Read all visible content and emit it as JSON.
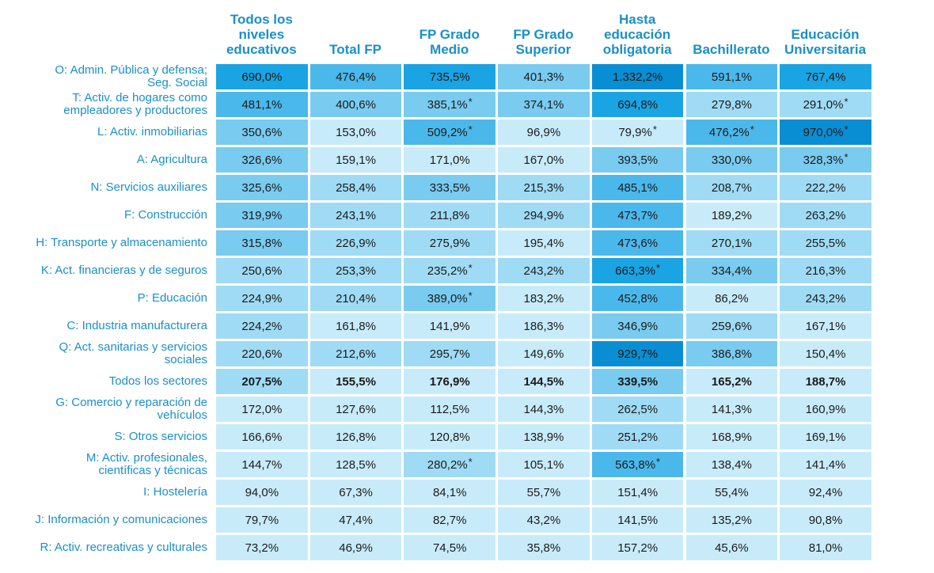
{
  "chart_data": {
    "type": "heatmap",
    "title": "",
    "note_marker": "*",
    "columns": [
      [
        "Todos los",
        "niveles",
        "educativos"
      ],
      [
        "Total FP"
      ],
      [
        "FP Grado",
        "Medio"
      ],
      [
        "FP Grado",
        "Superior"
      ],
      [
        "Hasta",
        "educación",
        "obligatoria"
      ],
      [
        "Bachillerato"
      ],
      [
        "Educación",
        "Universitaria"
      ]
    ],
    "rows": [
      {
        "label": [
          "O: Admin. Pública y defensa;",
          "Seg. Social"
        ],
        "bold": false,
        "values": [
          690.0,
          476.4,
          735.5,
          401.3,
          1332.2,
          591.1,
          767.4
        ],
        "texts": [
          "690,0%",
          "476,4%",
          "735,5%",
          "401,3%",
          "1.332,2%",
          "591,1%",
          "767,4%"
        ],
        "flags": [
          false,
          false,
          false,
          false,
          false,
          false,
          false
        ]
      },
      {
        "label": [
          "T: Activ. de hogares como",
          "empleadores y productores"
        ],
        "bold": false,
        "values": [
          481.1,
          400.6,
          385.1,
          374.1,
          694.8,
          279.8,
          291.0
        ],
        "texts": [
          "481,1%",
          "400,6%",
          "385,1%",
          "374,1%",
          "694,8%",
          "279,8%",
          "291,0%"
        ],
        "flags": [
          false,
          false,
          true,
          false,
          false,
          false,
          true
        ]
      },
      {
        "label": [
          "L: Activ. inmobiliarias"
        ],
        "bold": false,
        "values": [
          350.6,
          153.0,
          509.2,
          96.9,
          79.9,
          476.2,
          970.0
        ],
        "texts": [
          "350,6%",
          "153,0%",
          "509,2%",
          "96,9%",
          "79,9%",
          "476,2%",
          "970,0%"
        ],
        "flags": [
          false,
          false,
          true,
          false,
          true,
          true,
          true
        ]
      },
      {
        "label": [
          "A: Agricultura"
        ],
        "bold": false,
        "values": [
          326.6,
          159.1,
          171.0,
          167.0,
          393.5,
          330.0,
          328.3
        ],
        "texts": [
          "326,6%",
          "159,1%",
          "171,0%",
          "167,0%",
          "393,5%",
          "330,0%",
          "328,3%"
        ],
        "flags": [
          false,
          false,
          false,
          false,
          false,
          false,
          true
        ]
      },
      {
        "label": [
          "N: Servicios auxiliares"
        ],
        "bold": false,
        "values": [
          325.6,
          258.4,
          333.5,
          215.3,
          485.1,
          208.7,
          222.2
        ],
        "texts": [
          "325,6%",
          "258,4%",
          "333,5%",
          "215,3%",
          "485,1%",
          "208,7%",
          "222,2%"
        ],
        "flags": [
          false,
          false,
          false,
          false,
          false,
          false,
          false
        ]
      },
      {
        "label": [
          "F: Construcción"
        ],
        "bold": false,
        "values": [
          319.9,
          243.1,
          211.8,
          294.9,
          473.7,
          189.2,
          263.2
        ],
        "texts": [
          "319,9%",
          "243,1%",
          "211,8%",
          "294,9%",
          "473,7%",
          "189,2%",
          "263,2%"
        ],
        "flags": [
          false,
          false,
          false,
          false,
          false,
          false,
          false
        ]
      },
      {
        "label": [
          "H: Transporte y almacenamiento"
        ],
        "bold": false,
        "values": [
          315.8,
          226.9,
          275.9,
          195.4,
          473.6,
          270.1,
          255.5
        ],
        "texts": [
          "315,8%",
          "226,9%",
          "275,9%",
          "195,4%",
          "473,6%",
          "270,1%",
          "255,5%"
        ],
        "flags": [
          false,
          false,
          false,
          false,
          false,
          false,
          false
        ]
      },
      {
        "label": [
          "K: Act. financieras y de seguros"
        ],
        "bold": false,
        "values": [
          250.6,
          253.3,
          235.2,
          243.2,
          663.3,
          334.4,
          216.3
        ],
        "texts": [
          "250,6%",
          "253,3%",
          "235,2%",
          "243,2%",
          "663,3%",
          "334,4%",
          "216,3%"
        ],
        "flags": [
          false,
          false,
          true,
          false,
          true,
          false,
          false
        ]
      },
      {
        "label": [
          "P: Educación"
        ],
        "bold": false,
        "values": [
          224.9,
          210.4,
          389.0,
          183.2,
          452.8,
          86.2,
          243.2
        ],
        "texts": [
          "224,9%",
          "210,4%",
          "389,0%",
          "183,2%",
          "452,8%",
          "86,2%",
          "243,2%"
        ],
        "flags": [
          false,
          false,
          true,
          false,
          false,
          false,
          false
        ]
      },
      {
        "label": [
          "C: Industria manufacturera"
        ],
        "bold": false,
        "values": [
          224.2,
          161.8,
          141.9,
          186.3,
          346.9,
          259.6,
          167.1
        ],
        "texts": [
          "224,2%",
          "161,8%",
          "141,9%",
          "186,3%",
          "346,9%",
          "259,6%",
          "167,1%"
        ],
        "flags": [
          false,
          false,
          false,
          false,
          false,
          false,
          false
        ]
      },
      {
        "label": [
          "Q: Act. sanitarias y servicios",
          "sociales"
        ],
        "bold": false,
        "values": [
          220.6,
          212.6,
          295.7,
          149.6,
          929.7,
          386.8,
          150.4
        ],
        "texts": [
          "220,6%",
          "212,6%",
          "295,7%",
          "149,6%",
          "929,7%",
          "386,8%",
          "150,4%"
        ],
        "flags": [
          false,
          false,
          false,
          false,
          false,
          false,
          false
        ]
      },
      {
        "label": [
          "Todos los sectores"
        ],
        "bold": true,
        "values": [
          207.5,
          155.5,
          176.9,
          144.5,
          339.5,
          165.2,
          188.7
        ],
        "texts": [
          "207,5%",
          "155,5%",
          "176,9%",
          "144,5%",
          "339,5%",
          "165,2%",
          "188,7%"
        ],
        "flags": [
          false,
          false,
          false,
          false,
          false,
          false,
          false
        ]
      },
      {
        "label": [
          "G: Comercio y reparación de",
          "vehículos"
        ],
        "bold": false,
        "values": [
          172.0,
          127.6,
          112.5,
          144.3,
          262.5,
          141.3,
          160.9
        ],
        "texts": [
          "172,0%",
          "127,6%",
          "112,5%",
          "144,3%",
          "262,5%",
          "141,3%",
          "160,9%"
        ],
        "flags": [
          false,
          false,
          false,
          false,
          false,
          false,
          false
        ]
      },
      {
        "label": [
          "S: Otros servicios"
        ],
        "bold": false,
        "values": [
          166.6,
          126.8,
          120.8,
          138.9,
          251.2,
          168.9,
          169.1
        ],
        "texts": [
          "166,6%",
          "126,8%",
          "120,8%",
          "138,9%",
          "251,2%",
          "168,9%",
          "169,1%"
        ],
        "flags": [
          false,
          false,
          false,
          false,
          false,
          false,
          false
        ]
      },
      {
        "label": [
          "M: Activ. profesionales,",
          "científicas y técnicas"
        ],
        "bold": false,
        "values": [
          144.7,
          128.5,
          280.2,
          105.1,
          563.8,
          138.4,
          141.4
        ],
        "texts": [
          "144,7%",
          "128,5%",
          "280,2%",
          "105,1%",
          "563,8%",
          "138,4%",
          "141,4%"
        ],
        "flags": [
          false,
          false,
          true,
          false,
          true,
          false,
          false
        ]
      },
      {
        "label": [
          "I: Hostelería"
        ],
        "bold": false,
        "values": [
          94.0,
          67.3,
          84.1,
          55.7,
          151.4,
          55.4,
          92.4
        ],
        "texts": [
          "94,0%",
          "67,3%",
          "84,1%",
          "55,7%",
          "151,4%",
          "55,4%",
          "92,4%"
        ],
        "flags": [
          false,
          false,
          false,
          false,
          false,
          false,
          false
        ]
      },
      {
        "label": [
          "J: Información y comunicaciones"
        ],
        "bold": false,
        "values": [
          79.7,
          47.4,
          82.7,
          43.2,
          141.5,
          135.2,
          90.8
        ],
        "texts": [
          "79,7%",
          "47,4%",
          "82,7%",
          "43,2%",
          "141,5%",
          "135,2%",
          "90,8%"
        ],
        "flags": [
          false,
          false,
          false,
          false,
          false,
          false,
          false
        ]
      },
      {
        "label": [
          "R: Activ. recreativas y culturales"
        ],
        "bold": false,
        "values": [
          73.2,
          46.9,
          74.5,
          35.8,
          157.2,
          45.6,
          81.0
        ],
        "texts": [
          "73,2%",
          "46,9%",
          "74,5%",
          "35,8%",
          "157,2%",
          "45,6%",
          "81,0%"
        ],
        "flags": [
          false,
          false,
          false,
          false,
          false,
          false,
          false
        ]
      }
    ],
    "color_scale": {
      "thresholds": [
        200,
        300,
        450,
        600,
        900
      ],
      "colors": [
        "#c8ebfa",
        "#9fdbf4",
        "#79cbef",
        "#4bb8eb",
        "#1aa4e3",
        "#0a8ed3"
      ]
    }
  }
}
